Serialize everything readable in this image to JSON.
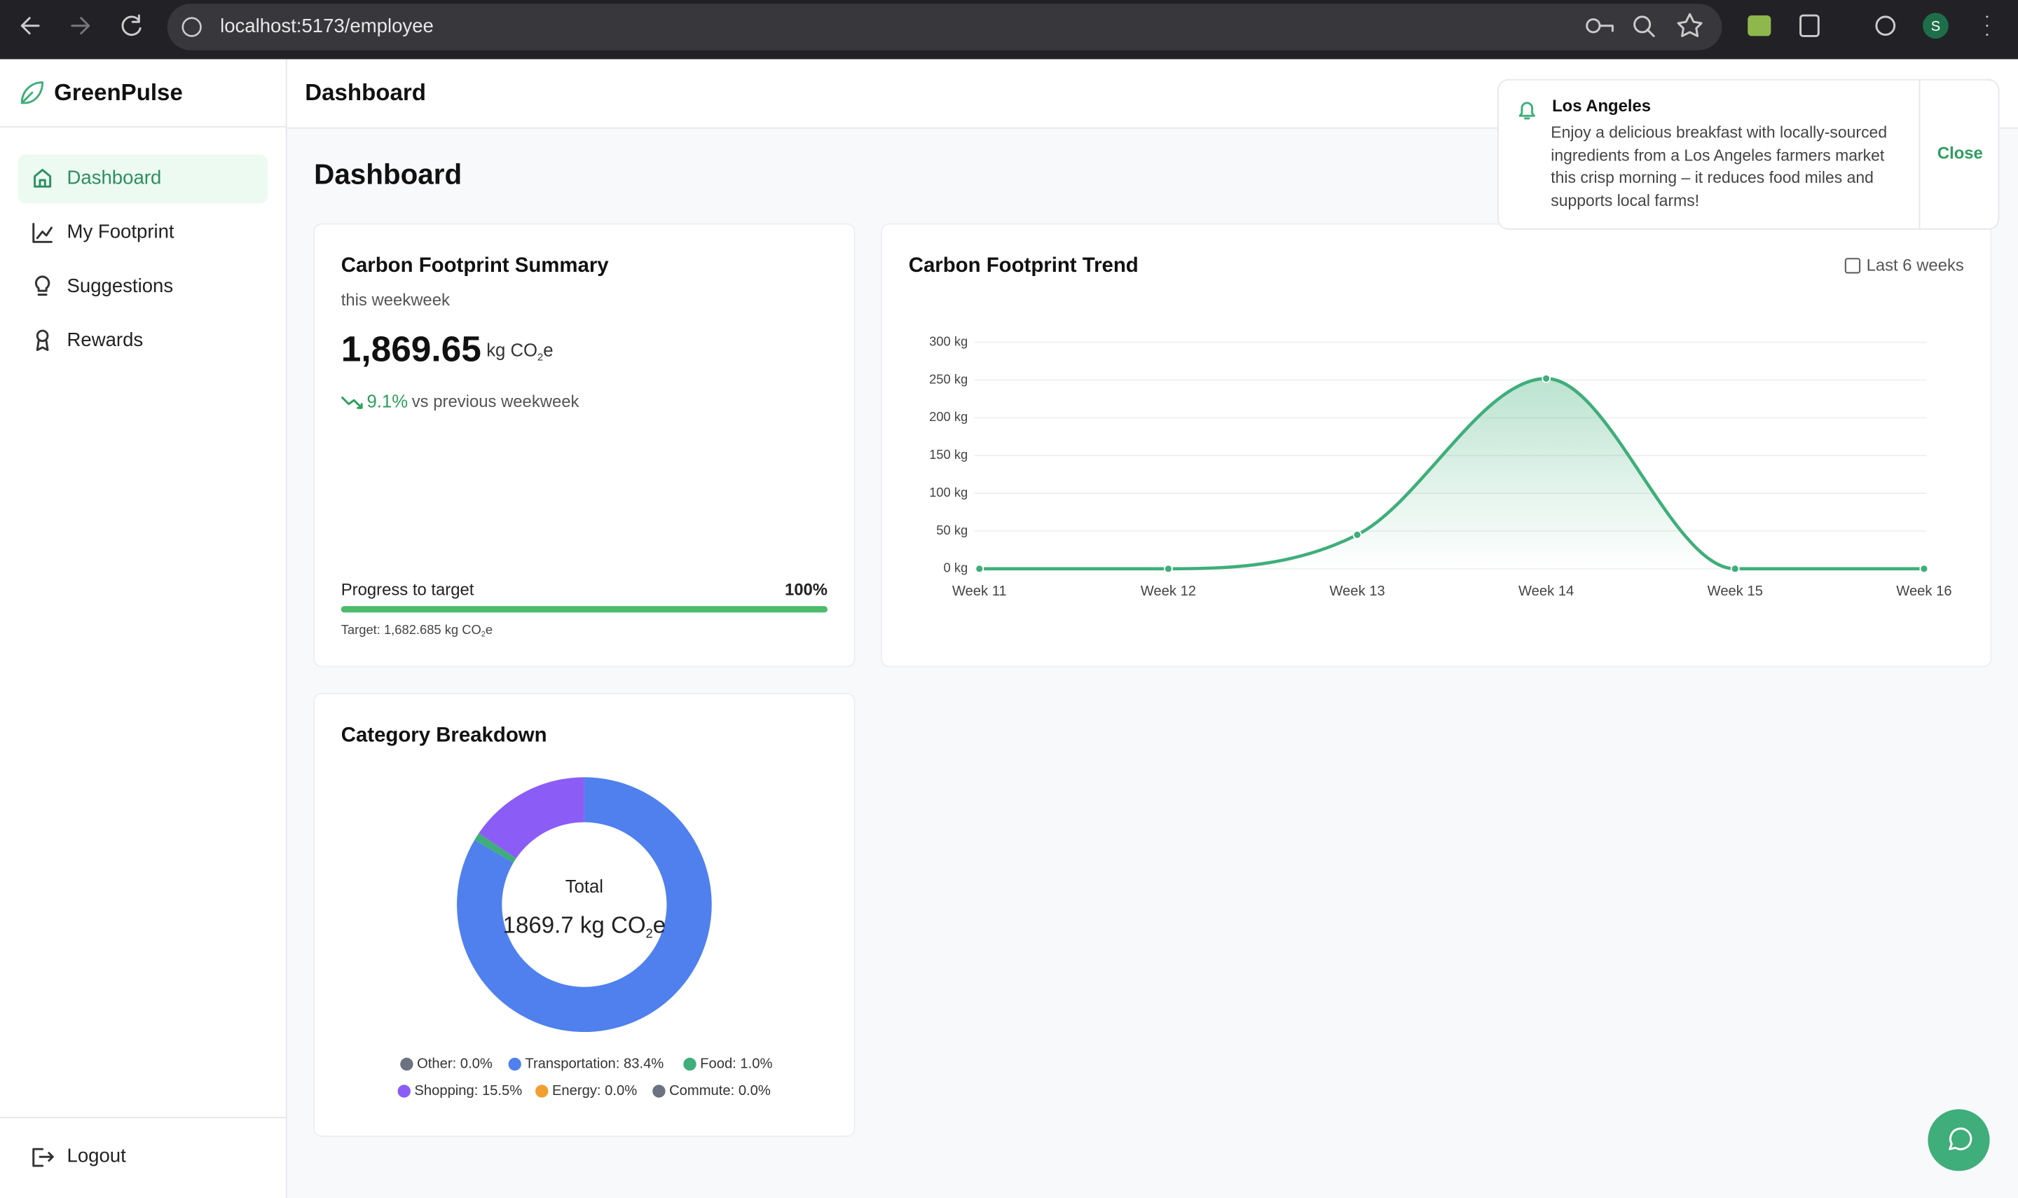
{
  "browser": {
    "url": "localhost:5173/employee",
    "avatar": "S"
  },
  "sidebar": {
    "brand": "GreenPulse",
    "nav": [
      "Dashboard",
      "My Footprint",
      "Suggestions",
      "Rewards"
    ],
    "logout": "Logout"
  },
  "header": {
    "title": "Dashboard"
  },
  "page_title": "Dashboard",
  "summary": {
    "title": "Carbon Footprint Summary",
    "period": "this weekweek",
    "value": "1,869.65",
    "unit": "kg CO",
    "unit_sub": "2",
    "unit_end": "e",
    "change": "9.1%",
    "change_text": "vs previous weekweek",
    "progress_label": "Progress to target",
    "progress_value": 100,
    "progress_lim": [
      0,
      100
    ],
    "progress_text": "100%",
    "target": "Target: 1,682.685 kg CO",
    "target_sub": "2",
    "target_end": "e"
  },
  "chart_data": [
    {
      "type": "line",
      "title": "Carbon Footprint Trend",
      "range_label": "Last 6 weeks",
      "categories": [
        "Week 11",
        "Week 12",
        "Week 13",
        "Week 14",
        "Week 15",
        "Week 16"
      ],
      "values": [
        0,
        0,
        45,
        252,
        0,
        0
      ],
      "color": "#3fae7a",
      "ylim": [
        0,
        300
      ],
      "yticks": [
        {
          "value": 0,
          "label": "0 kg"
        },
        {
          "value": 50,
          "label": "50 kg"
        },
        {
          "value": 100,
          "label": "100 kg"
        },
        {
          "value": 150,
          "label": "150 kg"
        },
        {
          "value": 200,
          "label": "200 kg"
        },
        {
          "value": 250,
          "label": "250 kg"
        },
        {
          "value": 300,
          "label": "300 kg"
        }
      ],
      "grid": true
    },
    {
      "type": "donut",
      "title": "Category Breakdown",
      "center_title": "Total",
      "center_value": "1869.7 kg CO",
      "center_sub": "2",
      "center_end": "e",
      "values": [
        0.0,
        83.4,
        1.0,
        15.5,
        0.0,
        0.0
      ],
      "value_labels": [
        "Other: 0.0%",
        "Transportation: 83.4%",
        "Food: 1.0%",
        "Shopping: 15.5%",
        "Energy: 0.0%",
        "Commute: 0.0%"
      ],
      "colors": [
        "#6b7280",
        "#4f80ee",
        "#3fae7a",
        "#8b5cf6",
        "#f0a030",
        "#6b7280"
      ]
    }
  ],
  "notification": {
    "title": "Los Angeles",
    "message": "Enjoy a delicious breakfast with locally-sourced ingredients from a Los Angeles farmers market this crisp morning – it reduces food miles and supports local farms!",
    "close": "Close"
  }
}
